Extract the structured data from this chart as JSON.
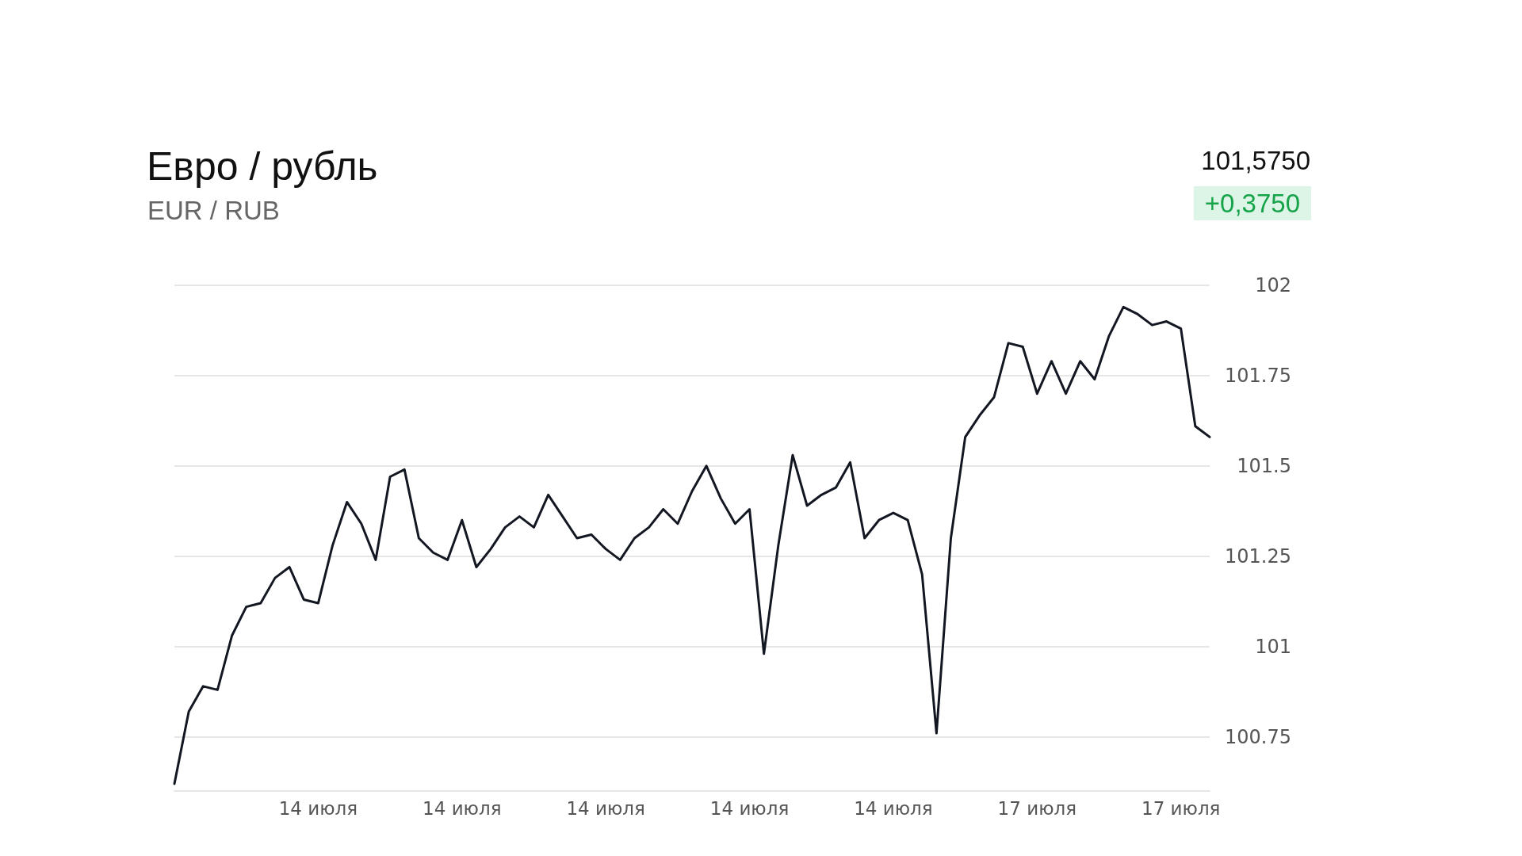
{
  "chart_data": {
    "type": "line",
    "title": "Евро / рубль",
    "subtitle": "EUR / RUB",
    "annotations": [
      "101,5750",
      "+0,3750"
    ],
    "categories": [
      null,
      null,
      null,
      null,
      null,
      null,
      null,
      null,
      null,
      null,
      "14 июля",
      null,
      null,
      null,
      null,
      null,
      null,
      null,
      null,
      null,
      "14 июля",
      null,
      null,
      null,
      null,
      null,
      null,
      null,
      null,
      null,
      "14 июля",
      null,
      null,
      null,
      null,
      null,
      null,
      null,
      null,
      null,
      "14 июля",
      null,
      null,
      null,
      null,
      null,
      null,
      null,
      null,
      null,
      "14 июля",
      null,
      null,
      null,
      null,
      null,
      null,
      null,
      null,
      null,
      "17 июля",
      null,
      null,
      null,
      null,
      null,
      null,
      null,
      null,
      null,
      "17 июля",
      null,
      null
    ],
    "values": [
      100.62,
      100.82,
      100.89,
      100.88,
      101.03,
      101.11,
      101.12,
      101.19,
      101.22,
      101.13,
      101.12,
      101.28,
      101.4,
      101.34,
      101.24,
      101.47,
      101.49,
      101.3,
      101.26,
      101.24,
      101.35,
      101.22,
      101.27,
      101.33,
      101.36,
      101.33,
      101.42,
      101.36,
      101.3,
      101.31,
      101.27,
      101.24,
      101.3,
      101.33,
      101.38,
      101.34,
      101.43,
      101.5,
      101.41,
      101.34,
      101.38,
      100.98,
      101.28,
      101.53,
      101.39,
      101.42,
      101.44,
      101.51,
      101.3,
      101.35,
      101.37,
      101.35,
      101.2,
      100.76,
      101.3,
      101.58,
      101.64,
      101.69,
      101.84,
      101.83,
      101.7,
      101.79,
      101.7,
      101.79,
      101.74,
      101.86,
      101.94,
      101.92,
      101.89,
      101.9,
      101.88,
      101.61,
      101.58
    ],
    "color": "#131722",
    "ylim": [
      100.6,
      102
    ],
    "yticks": [
      100.75,
      101,
      101.25,
      101.5,
      101.75,
      102
    ],
    "grid": "y",
    "marker": "none"
  }
}
